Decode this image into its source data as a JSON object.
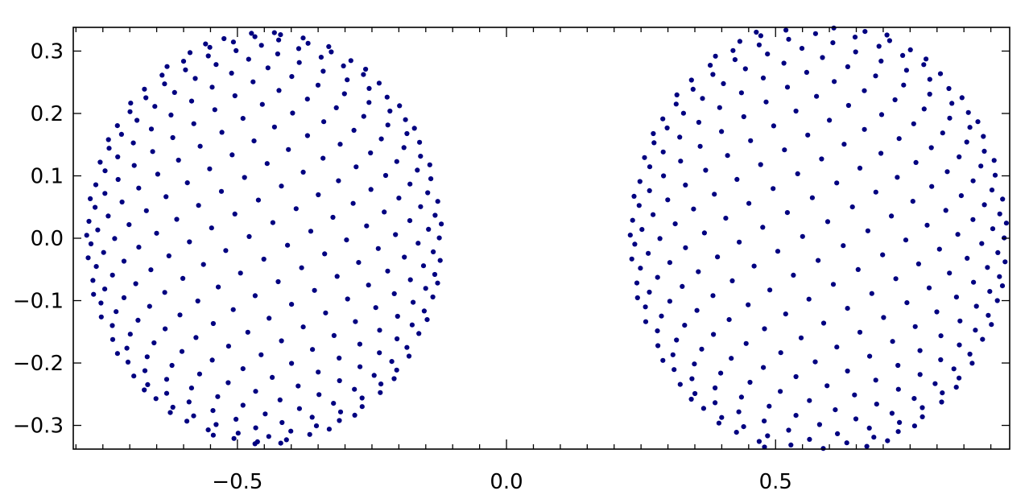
{
  "chart_data": {
    "type": "scatter",
    "title": "",
    "xlabel": "",
    "ylabel": "",
    "xlim": [
      -0.805,
      0.935
    ],
    "ylim": [
      -0.338,
      0.338
    ],
    "grid": false,
    "legend": "none",
    "marker_color": "#000080",
    "x_ticks": [
      {
        "value": -0.5,
        "label": "−0.5"
      },
      {
        "value": 0.0,
        "label": "0.0"
      },
      {
        "value": 0.5,
        "label": "0.5"
      }
    ],
    "y_ticks": [
      {
        "value": 0.3,
        "label": "0.3"
      },
      {
        "value": 0.2,
        "label": "0.2"
      },
      {
        "value": 0.1,
        "label": "0.1"
      },
      {
        "value": 0.0,
        "label": "0.0"
      },
      {
        "value": -0.1,
        "label": "−0.1"
      },
      {
        "value": -0.2,
        "label": "−0.2"
      },
      {
        "value": -0.3,
        "label": "−0.3"
      }
    ],
    "series": [
      {
        "center_x": -0.45,
        "center_y": 0.0,
        "radius": 0.33,
        "points": 620
      },
      {
        "center_x": 0.58,
        "center_y": 0.0,
        "radius": 0.35,
        "points": 620
      }
    ]
  }
}
